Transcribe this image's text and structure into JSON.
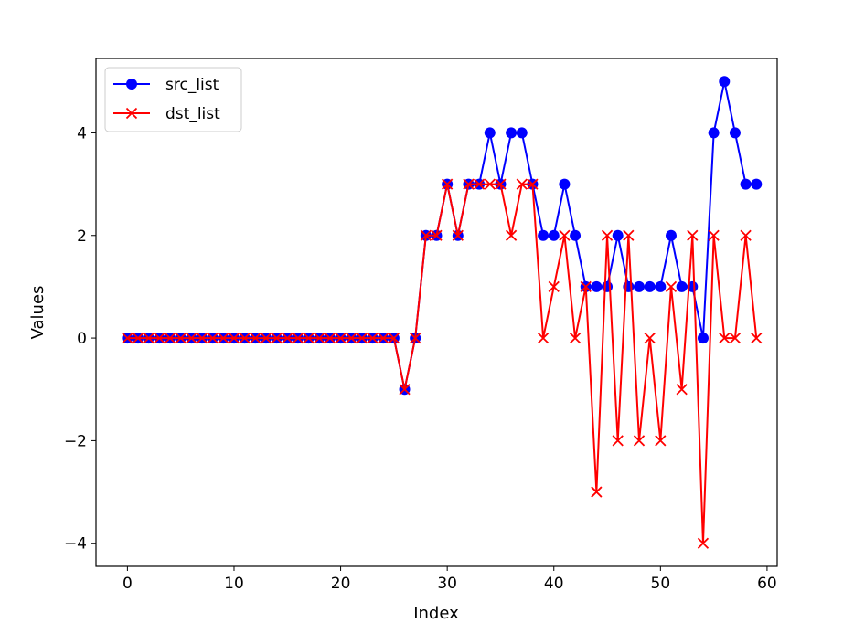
{
  "chart_data": {
    "type": "line",
    "xlabel": "Index",
    "ylabel": "Values",
    "xlim": [
      -2.95,
      60.95
    ],
    "ylim": [
      -4.45,
      5.45
    ],
    "x_ticks": [
      0,
      10,
      20,
      30,
      40,
      50,
      60
    ],
    "y_ticks": [
      -4,
      -2,
      0,
      2,
      4
    ],
    "x_tick_labels": [
      "0",
      "10",
      "20",
      "30",
      "40",
      "50",
      "60"
    ],
    "y_tick_labels": [
      "−4",
      "−2",
      "0",
      "2",
      "4"
    ],
    "grid": false,
    "legend_position": "top-left",
    "series": [
      {
        "name": "src_list",
        "color": "#0000ff",
        "marker": "circle",
        "values": [
          0,
          0,
          0,
          0,
          0,
          0,
          0,
          0,
          0,
          0,
          0,
          0,
          0,
          0,
          0,
          0,
          0,
          0,
          0,
          0,
          0,
          0,
          0,
          0,
          0,
          0,
          -1,
          0,
          2,
          2,
          3,
          2,
          3,
          3,
          4,
          3,
          4,
          4,
          3,
          2,
          2,
          3,
          2,
          1,
          1,
          1,
          2,
          1,
          1,
          1,
          1,
          2,
          1,
          1,
          0,
          4,
          5,
          4,
          3,
          3
        ]
      },
      {
        "name": "dst_list",
        "color": "#ff0000",
        "marker": "x",
        "values": [
          0,
          0,
          0,
          0,
          0,
          0,
          0,
          0,
          0,
          0,
          0,
          0,
          0,
          0,
          0,
          0,
          0,
          0,
          0,
          0,
          0,
          0,
          0,
          0,
          0,
          0,
          -1,
          0,
          2,
          2,
          3,
          2,
          3,
          3,
          3,
          3,
          2,
          3,
          3,
          0,
          1,
          2,
          0,
          1,
          -3,
          2,
          -2,
          2,
          -2,
          0,
          -2,
          1,
          -1,
          2,
          -4,
          2,
          0,
          0,
          2,
          0
        ]
      }
    ]
  }
}
